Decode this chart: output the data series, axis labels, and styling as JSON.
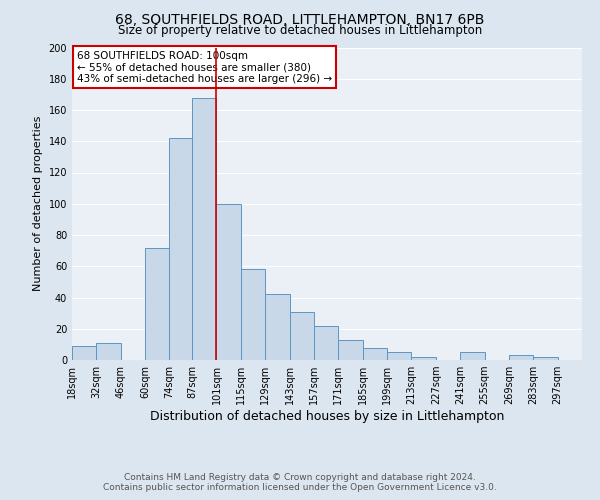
{
  "title1": "68, SOUTHFIELDS ROAD, LITTLEHAMPTON, BN17 6PB",
  "title2": "Size of property relative to detached houses in Littlehampton",
  "xlabel": "Distribution of detached houses by size in Littlehampton",
  "ylabel": "Number of detached properties",
  "footer1": "Contains HM Land Registry data © Crown copyright and database right 2024.",
  "footer2": "Contains public sector information licensed under the Open Government Licence v3.0.",
  "annotation_line1": "68 SOUTHFIELDS ROAD: 100sqm",
  "annotation_line2": "← 55% of detached houses are smaller (380)",
  "annotation_line3": "43% of semi-detached houses are larger (296) →",
  "bar_left_edges": [
    18,
    32,
    46,
    60,
    74,
    87,
    101,
    115,
    129,
    143,
    157,
    171,
    185,
    199,
    213,
    227,
    241,
    255,
    269,
    283
  ],
  "bar_heights": [
    9,
    11,
    0,
    72,
    142,
    168,
    100,
    58,
    42,
    31,
    22,
    13,
    8,
    5,
    2,
    0,
    5,
    0,
    3,
    2
  ],
  "bar_widths": [
    14,
    14,
    14,
    14,
    13,
    14,
    14,
    14,
    14,
    14,
    14,
    14,
    14,
    14,
    14,
    14,
    14,
    14,
    14,
    14
  ],
  "tick_labels": [
    "18sqm",
    "32sqm",
    "46sqm",
    "60sqm",
    "74sqm",
    "87sqm",
    "101sqm",
    "115sqm",
    "129sqm",
    "143sqm",
    "157sqm",
    "171sqm",
    "185sqm",
    "199sqm",
    "213sqm",
    "227sqm",
    "241sqm",
    "255sqm",
    "269sqm",
    "283sqm",
    "297sqm"
  ],
  "tick_positions": [
    18,
    32,
    46,
    60,
    74,
    87,
    101,
    115,
    129,
    143,
    157,
    171,
    185,
    199,
    213,
    227,
    241,
    255,
    269,
    283,
    297
  ],
  "bar_color": "#c8d8e8",
  "bar_edge_color": "#5b96c2",
  "vline_x": 101,
  "vline_color": "#cc0000",
  "annotation_box_edge_color": "#cc0000",
  "ylim": [
    0,
    200
  ],
  "yticks": [
    0,
    20,
    40,
    60,
    80,
    100,
    120,
    140,
    160,
    180,
    200
  ],
  "bg_color": "#dce6f0",
  "plot_bg_color": "#eaf0f6",
  "grid_color": "#ffffff",
  "title1_fontsize": 10,
  "title2_fontsize": 8.5,
  "xlabel_fontsize": 9,
  "ylabel_fontsize": 8,
  "tick_fontsize": 7,
  "annot_fontsize": 7.5,
  "footer_fontsize": 6.5
}
